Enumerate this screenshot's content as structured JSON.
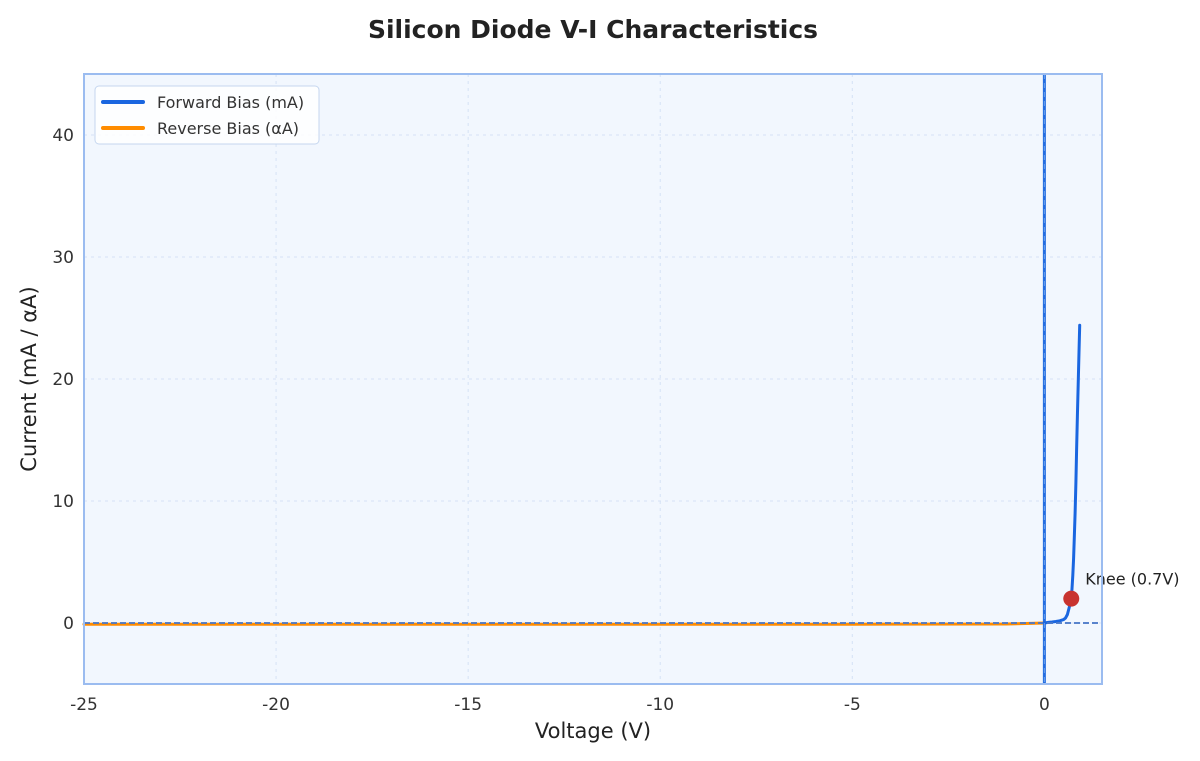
{
  "chart_data": {
    "type": "line",
    "title": "Silicon Diode V-I Characteristics",
    "xlabel": "Voltage (V)",
    "ylabel": "Current (mA / αA)",
    "xlim": [
      -25,
      1.5
    ],
    "ylim": [
      -5,
      45
    ],
    "xticks": [
      -25,
      -20,
      -15,
      -10,
      -5,
      0
    ],
    "yticks": [
      0,
      10,
      20,
      30,
      40
    ],
    "grid": true,
    "legend_position": "top-left",
    "colors": {
      "forward": "#1a66e0",
      "reverse": "#ff8c00",
      "frame": "#9bbcf0",
      "plot_bg": "#f2f7fe",
      "grid": "#d5e2f5",
      "knee_marker": "#c8332f",
      "axis_line": "#4a78c8"
    },
    "series": [
      {
        "name": "Forward Bias (mA)",
        "x": [
          0,
          0.1,
          0.2,
          0.3,
          0.4,
          0.5,
          0.55,
          0.6,
          0.65,
          0.7,
          0.72,
          0.74,
          0.76,
          0.78,
          0.8,
          0.82,
          0.84,
          0.86,
          0.88,
          0.9,
          0.92
        ],
        "y": [
          0,
          0.05,
          0.08,
          0.12,
          0.18,
          0.28,
          0.4,
          0.7,
          1.3,
          2.0,
          2.8,
          3.9,
          5.3,
          7.0,
          9.0,
          11.5,
          14.2,
          17.0,
          19.6,
          22.2,
          24.4
        ]
      },
      {
        "name": "Reverse Bias (αA)",
        "x": [
          -25,
          -20,
          -15,
          -10,
          -5,
          -1,
          0
        ],
        "y": [
          -0.1,
          -0.1,
          -0.1,
          -0.1,
          -0.1,
          -0.08,
          0
        ]
      }
    ],
    "annotations": [
      {
        "text": "Knee (0.7V)",
        "x": 0.7,
        "y": 2.0
      }
    ],
    "reference_lines": {
      "x": 0,
      "y": 0
    }
  }
}
